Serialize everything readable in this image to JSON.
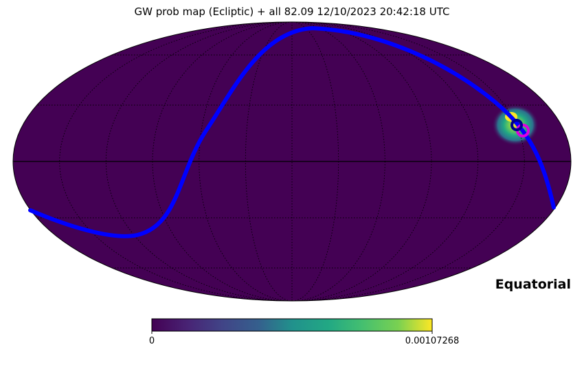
{
  "title": "GW prob map (Ecliptic) + all 82.09  12/10/2023 20:42:18 UTC",
  "projection": "mollweide",
  "frame_label": "Equatorial",
  "colormap": "viridis",
  "map_background_color": "#440154",
  "colorbar": {
    "min_label": "0",
    "max_label": "0.00107268"
  },
  "colors": {
    "track": "#0000ff",
    "grid": "#000000",
    "marker_blue": "#00008b",
    "marker_magenta": "#e000e0",
    "hotspot": "#fde725"
  }
}
